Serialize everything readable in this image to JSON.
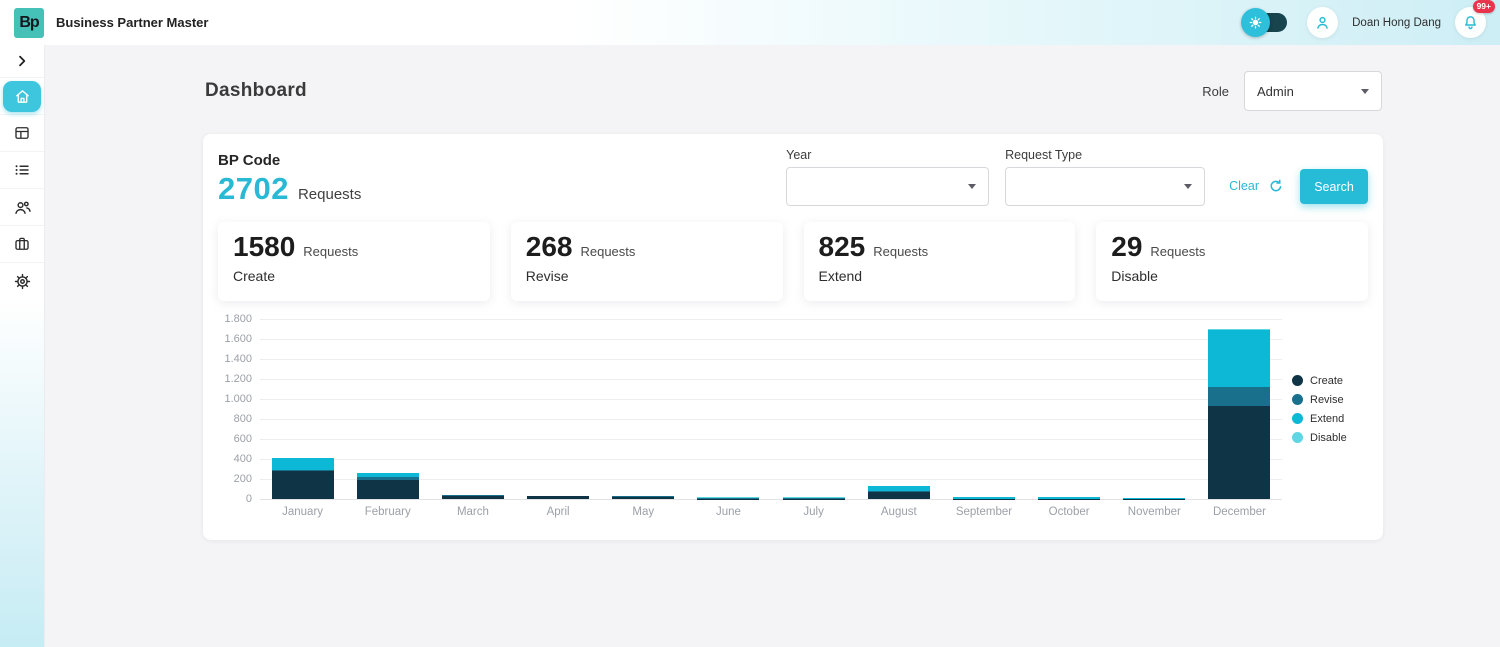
{
  "app": {
    "name": "Business Partner Master",
    "logo": "Bp"
  },
  "header": {
    "user_name": "Doan Hong Dang",
    "notification_badge": "99+",
    "icons": [
      "sun-icon",
      "user-icon",
      "bell-icon"
    ],
    "accent_color": "#2ab9d5",
    "badge_color": "#e8354d"
  },
  "sidebar": {
    "items": [
      {
        "name": "collapse-toggle",
        "icon": "chevron-right-icon",
        "active": false
      },
      {
        "name": "dashboard",
        "icon": "home-icon",
        "active": true
      },
      {
        "name": "layout",
        "icon": "layout-icon",
        "active": false
      },
      {
        "name": "list",
        "icon": "list-icon",
        "active": false
      },
      {
        "name": "users",
        "icon": "users-icon",
        "active": false
      },
      {
        "name": "business",
        "icon": "briefcase-icon",
        "active": false
      },
      {
        "name": "settings",
        "icon": "gear-icon",
        "active": false
      }
    ],
    "active_color": "#3ec6de"
  },
  "page": {
    "title": "Dashboard",
    "role_label": "Role",
    "role_value": "Admin"
  },
  "summary": {
    "bp_code_label": "BP Code",
    "total_value": "2702",
    "requests_label": "Requests"
  },
  "filters": {
    "year_label": "Year",
    "year_value": "",
    "request_type_label": "Request Type",
    "request_type_value": "",
    "clear_label": "Clear",
    "refresh_icon": "refresh-icon",
    "search_label": "Search",
    "search_color": "#26bcd8"
  },
  "stat_cards": [
    {
      "value": "1580",
      "unit": "Requests",
      "label": "Create"
    },
    {
      "value": "268",
      "unit": "Requests",
      "label": "Revise"
    },
    {
      "value": "825",
      "unit": "Requests",
      "label": "Extend"
    },
    {
      "value": "29",
      "unit": "Requests",
      "label": "Disable"
    }
  ],
  "chart_data": {
    "type": "bar",
    "stacked": true,
    "grid": true,
    "legend_position": "right",
    "categories": [
      "January",
      "February",
      "March",
      "April",
      "May",
      "June",
      "July",
      "August",
      "September",
      "October",
      "November",
      "December"
    ],
    "series": [
      {
        "name": "Create",
        "color": "#0f3446",
        "values": [
          280,
          195,
          35,
          30,
          25,
          5,
          5,
          70,
          3,
          3,
          2,
          927
        ]
      },
      {
        "name": "Revise",
        "color": "#19708d",
        "values": [
          15,
          25,
          3,
          3,
          2,
          2,
          2,
          15,
          2,
          2,
          2,
          195
        ]
      },
      {
        "name": "Extend",
        "color": "#0cb8d6",
        "values": [
          115,
          40,
          2,
          2,
          3,
          8,
          8,
          45,
          18,
          15,
          4,
          565
        ]
      },
      {
        "name": "Disable",
        "color": "#5fd6e3",
        "values": [
          5,
          2,
          0,
          0,
          0,
          2,
          2,
          3,
          2,
          2,
          1,
          10
        ]
      }
    ],
    "ylim": [
      0,
      1800
    ],
    "ytick_step": 200,
    "ytick_labels": [
      "1.800",
      "1.600",
      "1.400",
      "1.200",
      "1.000",
      "800",
      "600",
      "400",
      "200",
      "0"
    ]
  }
}
